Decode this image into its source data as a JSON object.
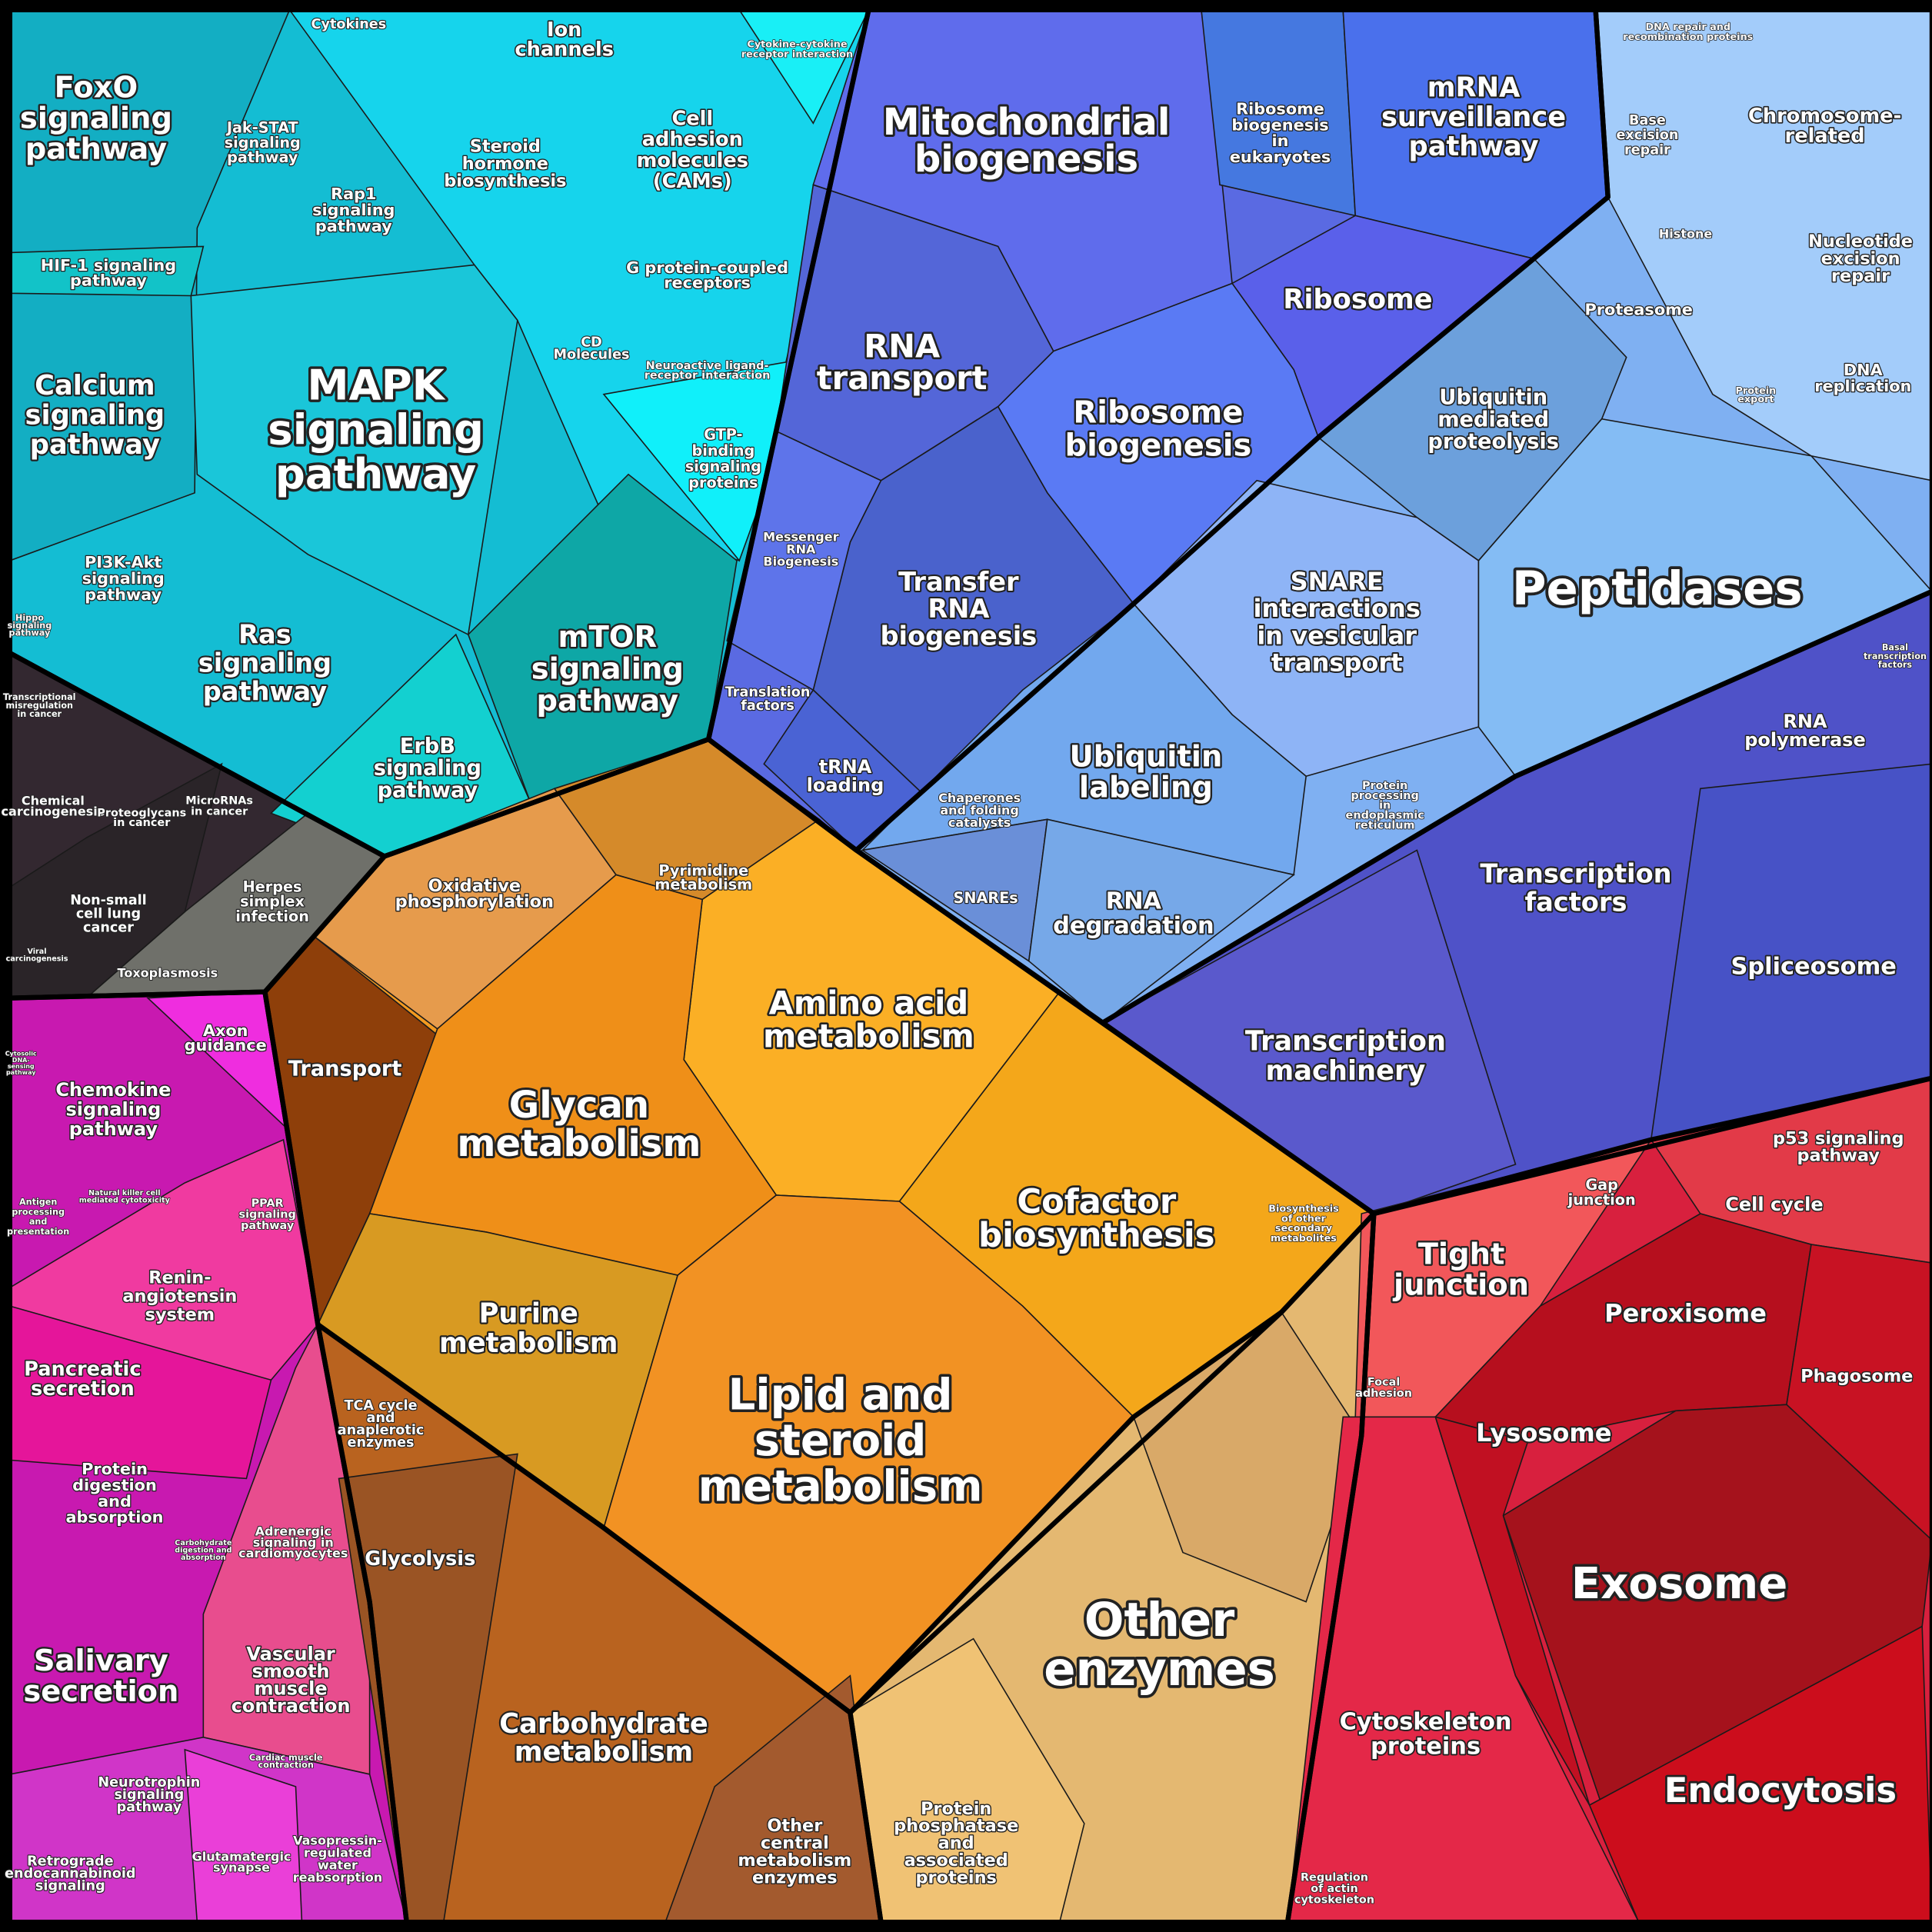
{
  "cells": [
    {
      "lines": [
        "FoxO",
        "signaling",
        "pathway"
      ]
    },
    {
      "lines": [
        "Jak-STAT",
        "signaling",
        "pathway"
      ]
    },
    {
      "lines": [
        "Cytokines"
      ]
    },
    {
      "lines": [
        "Ion",
        "channels"
      ]
    },
    {
      "lines": [
        "Cytokine-cytokine",
        "receptor interaction"
      ]
    },
    {
      "lines": [
        "Steroid",
        "hormone",
        "biosynthesis"
      ]
    },
    {
      "lines": [
        "Cell",
        "adhesion",
        "molecules",
        "(CAMs)"
      ]
    },
    {
      "lines": [
        "Rap1",
        "signaling",
        "pathway"
      ]
    },
    {
      "lines": [
        "HIF-1 signaling",
        "pathway"
      ]
    },
    {
      "lines": [
        "G protein-coupled",
        "receptors"
      ]
    },
    {
      "lines": [
        "CD",
        "Molecules"
      ]
    },
    {
      "lines": [
        "Neuroactive ligand-",
        "receptor interaction"
      ]
    },
    {
      "lines": [
        "MAPK",
        "signaling",
        "pathway"
      ]
    },
    {
      "lines": [
        "Calcium",
        "signaling",
        "pathway"
      ]
    },
    {
      "lines": [
        "GTP-",
        "binding",
        "signaling",
        "proteins"
      ]
    },
    {
      "lines": [
        "PI3K-Akt",
        "signaling",
        "pathway"
      ]
    },
    {
      "lines": [
        "Hippo",
        "signaling",
        "pathway"
      ]
    },
    {
      "lines": [
        "Ras",
        "signaling",
        "pathway"
      ]
    },
    {
      "lines": [
        "mTOR",
        "signaling",
        "pathway"
      ]
    },
    {
      "lines": [
        "ErbB",
        "signaling",
        "pathway"
      ]
    },
    {
      "lines": [
        "Transcriptional",
        "misregulation",
        "in cancer"
      ]
    },
    {
      "lines": [
        "Chemical",
        "carcinogenesis"
      ]
    },
    {
      "lines": [
        "Proteoglycans",
        "in cancer"
      ]
    },
    {
      "lines": [
        "MicroRNAs",
        "in cancer"
      ]
    },
    {
      "lines": [
        "Non-small",
        "cell lung",
        "cancer"
      ]
    },
    {
      "lines": [
        "Herpes",
        "simplex",
        "infection"
      ]
    },
    {
      "lines": [
        "Viral",
        "carcinogenesis"
      ]
    },
    {
      "lines": [
        "Toxoplasmosis"
      ]
    },
    {
      "lines": [
        "Axon",
        "guidance"
      ]
    },
    {
      "lines": [
        "Cytosolic",
        "DNA-",
        "sensing",
        "pathway"
      ]
    },
    {
      "lines": [
        "Chemokine",
        "signaling",
        "pathway"
      ]
    },
    {
      "lines": [
        "Natural killer cell",
        "mediated cytotoxicity"
      ]
    },
    {
      "lines": [
        "Antigen",
        "processing",
        "and",
        "presentation"
      ]
    },
    {
      "lines": [
        "PPAR",
        "signaling",
        "pathway"
      ]
    },
    {
      "lines": [
        "Renin-",
        "angiotensin",
        "system"
      ]
    },
    {
      "lines": [
        "Pancreatic",
        "secretion"
      ]
    },
    {
      "lines": [
        "Protein",
        "digestion",
        "and",
        "absorption"
      ]
    },
    {
      "lines": [
        "Carbohydrate",
        "digestion and",
        "absorption"
      ]
    },
    {
      "lines": [
        "Adrenergic",
        "signaling in",
        "cardiomyocytes"
      ]
    },
    {
      "lines": [
        "Salivary",
        "secretion"
      ]
    },
    {
      "lines": [
        "Vascular",
        "smooth",
        "muscle",
        "contraction"
      ]
    },
    {
      "lines": [
        "Cardiac muscle",
        "contraction"
      ]
    },
    {
      "lines": [
        "Neurotrophin",
        "signaling",
        "pathway"
      ]
    },
    {
      "lines": [
        "Retrograde",
        "endocannabinoid",
        "signaling"
      ]
    },
    {
      "lines": [
        "Glutamatergic",
        "synapse"
      ]
    },
    {
      "lines": [
        "Vasopressin-",
        "regulated",
        "water",
        "reabsorption"
      ]
    },
    {
      "lines": [
        "Transport"
      ]
    },
    {
      "lines": [
        "Oxidative",
        "phosphorylation"
      ]
    },
    {
      "lines": [
        "Pyrimidine",
        "metabolism"
      ]
    },
    {
      "lines": [
        "Amino acid",
        "metabolism"
      ]
    },
    {
      "lines": [
        "Glycan",
        "metabolism"
      ]
    },
    {
      "lines": [
        "Cofactor",
        "biosynthesis"
      ]
    },
    {
      "lines": [
        "Biosynthesis",
        "of other",
        "secondary",
        "metabolites"
      ]
    },
    {
      "lines": [
        "Purine",
        "metabolism"
      ]
    },
    {
      "lines": [
        "Lipid and",
        "steroid",
        "metabolism"
      ]
    },
    {
      "lines": [
        "TCA cycle",
        "and",
        "anaplerotic",
        "enzymes"
      ]
    },
    {
      "lines": [
        "Glycolysis"
      ]
    },
    {
      "lines": [
        "Carbohydrate",
        "metabolism"
      ]
    },
    {
      "lines": [
        "Other",
        "central",
        "metabolism",
        "enzymes"
      ]
    },
    {
      "lines": [
        "Other",
        "enzymes"
      ]
    },
    {
      "lines": [
        "Protein",
        "phosphatase",
        "and",
        "associated",
        "proteins"
      ]
    },
    {
      "lines": [
        "Mitochondrial",
        "biogenesis"
      ]
    },
    {
      "lines": [
        "Ribosome",
        "biogenesis",
        "in",
        "eukaryotes"
      ]
    },
    {
      "lines": [
        "mRNA",
        "surveillance",
        "pathway"
      ]
    },
    {
      "lines": [
        "RNA",
        "transport"
      ]
    },
    {
      "lines": [
        "Ribosome"
      ]
    },
    {
      "lines": [
        "Ribosome",
        "biogenesis"
      ]
    },
    {
      "lines": [
        "Messenger",
        "RNA",
        "Biogenesis"
      ]
    },
    {
      "lines": [
        "Transfer",
        "RNA",
        "biogenesis"
      ]
    },
    {
      "lines": [
        "Translation",
        "factors"
      ]
    },
    {
      "lines": [
        "tRNA",
        "loading"
      ]
    },
    {
      "lines": [
        "DNA repair and",
        "recombination proteins"
      ]
    },
    {
      "lines": [
        "Base",
        "excision",
        "repair"
      ]
    },
    {
      "lines": [
        "Chromosome-",
        "related"
      ]
    },
    {
      "lines": [
        "Histone"
      ]
    },
    {
      "lines": [
        "Nucleotide",
        "excision",
        "repair"
      ]
    },
    {
      "lines": [
        "Proteasome"
      ]
    },
    {
      "lines": [
        "Ubiquitin",
        "mediated",
        "proteolysis"
      ]
    },
    {
      "lines": [
        "DNA",
        "replication"
      ]
    },
    {
      "lines": [
        "Protein",
        "export"
      ]
    },
    {
      "lines": [
        "Peptidases"
      ]
    },
    {
      "lines": [
        "SNARE",
        "interactions",
        "in vesicular",
        "transport"
      ]
    },
    {
      "lines": [
        "Ubiquitin",
        "labeling"
      ]
    },
    {
      "lines": [
        "Chaperones",
        "and folding",
        "catalysts"
      ]
    },
    {
      "lines": [
        "Protein",
        "processing",
        "in",
        "endoplasmic",
        "reticulum"
      ]
    },
    {
      "lines": [
        "SNAREs"
      ]
    },
    {
      "lines": [
        "RNA",
        "degradation"
      ]
    },
    {
      "lines": [
        "Basal",
        "transcription",
        "factors"
      ]
    },
    {
      "lines": [
        "RNA",
        "polymerase"
      ]
    },
    {
      "lines": [
        "Transcription",
        "factors"
      ]
    },
    {
      "lines": [
        "Spliceosome"
      ]
    },
    {
      "lines": [
        "Transcription",
        "machinery"
      ]
    },
    {
      "lines": [
        "p53 signaling",
        "pathway"
      ]
    },
    {
      "lines": [
        "Gap",
        "junction"
      ]
    },
    {
      "lines": [
        "Cell cycle"
      ]
    },
    {
      "lines": [
        "Tight",
        "junction"
      ]
    },
    {
      "lines": [
        "Peroxisome"
      ]
    },
    {
      "lines": [
        "Phagosome"
      ]
    },
    {
      "lines": [
        "Focal",
        "adhesion"
      ]
    },
    {
      "lines": [
        "Lysosome"
      ]
    },
    {
      "lines": [
        "Exosome"
      ]
    },
    {
      "lines": [
        "Cytoskeleton",
        "proteins"
      ]
    },
    {
      "lines": [
        "Endocytosis"
      ]
    },
    {
      "lines": [
        "Regulation",
        "of actin",
        "cytoskeleton"
      ]
    }
  ]
}
